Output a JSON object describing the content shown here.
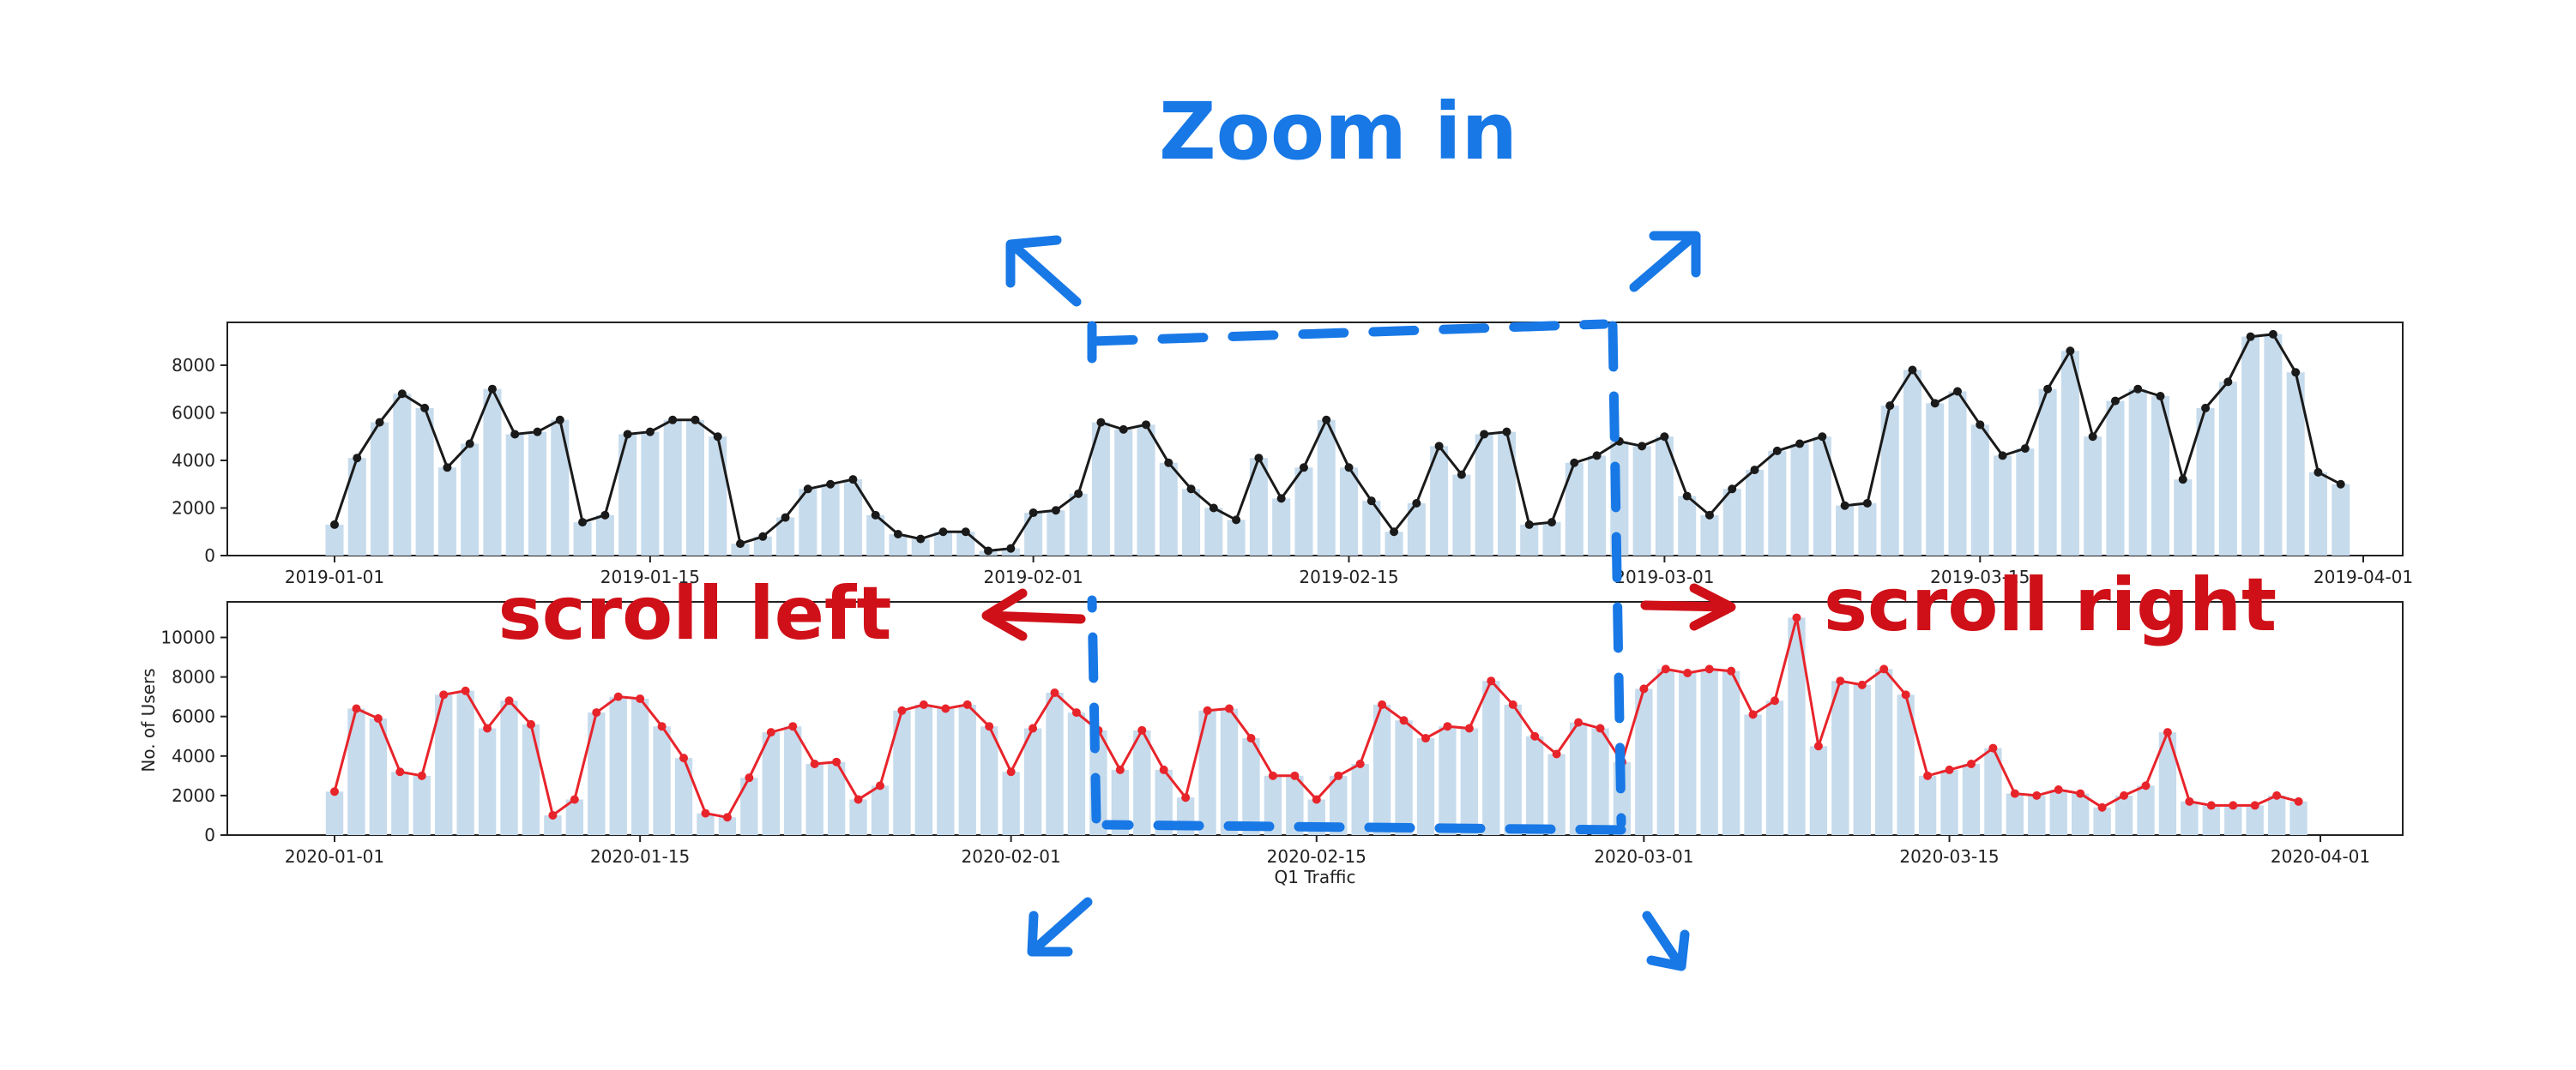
{
  "annotations": {
    "zoom": "Zoom in",
    "scroll_left": "scroll left",
    "scroll_right": "scroll right"
  },
  "colors": {
    "bar": "#c6dbec",
    "line_top": "#1a1a1a",
    "line_bottom": "#e8242b",
    "annotation_blue": "#1878e6",
    "annotation_red": "#cf1018"
  },
  "chart_data": [
    {
      "type": "bar+line",
      "title": "",
      "xlabel": "",
      "ylabel": "",
      "ylim": [
        0,
        9800
      ],
      "yticks": [
        0,
        2000,
        4000,
        6000,
        8000
      ],
      "x_start": "2019-01-01",
      "x_end": "2019-03-31",
      "xticks": [
        "2019-01-01",
        "2019-01-15",
        "2019-02-01",
        "2019-02-15",
        "2019-03-01",
        "2019-03-15",
        "2019-04-01"
      ],
      "values": [
        1300,
        4100,
        5600,
        6800,
        6200,
        3700,
        4700,
        7000,
        5100,
        5200,
        5700,
        1400,
        1700,
        5100,
        5200,
        5700,
        5700,
        5000,
        500,
        800,
        1600,
        2800,
        3000,
        3200,
        1700,
        900,
        700,
        1000,
        1000,
        200,
        300,
        1800,
        1900,
        2600,
        5600,
        5300,
        5500,
        3900,
        2800,
        2000,
        1500,
        4100,
        2400,
        3700,
        5700,
        3700,
        2300,
        1000,
        2200,
        4600,
        3400,
        5100,
        5200,
        1300,
        1400,
        3900,
        4200,
        4800,
        4600,
        5000,
        2500,
        1700,
        2800,
        3600,
        4400,
        4700,
        5000,
        2100,
        2200,
        6300,
        7800,
        6400,
        6900,
        5500,
        4200,
        4500,
        7000,
        8600,
        5000,
        6500,
        7000,
        6700,
        3200,
        6200,
        7300,
        9200,
        9300,
        7700,
        3500,
        3000
      ]
    },
    {
      "type": "bar+line",
      "title": "",
      "xlabel": "Q1 Traffic",
      "ylabel": "No. of Users",
      "ylim": [
        0,
        11800
      ],
      "yticks": [
        0,
        2000,
        4000,
        6000,
        8000,
        10000
      ],
      "x_start": "2020-01-01",
      "x_end": "2020-03-31",
      "xticks": [
        "2020-01-01",
        "2020-01-15",
        "2020-02-01",
        "2020-02-15",
        "2020-03-01",
        "2020-03-15",
        "2020-04-01"
      ],
      "values": [
        2200,
        6400,
        5900,
        3200,
        3000,
        7100,
        7300,
        5400,
        6800,
        5600,
        1000,
        1800,
        6200,
        7000,
        6900,
        5500,
        3900,
        1100,
        900,
        2900,
        5200,
        5500,
        3600,
        3700,
        1800,
        2500,
        6300,
        6600,
        6400,
        6600,
        5500,
        3200,
        5400,
        7200,
        6200,
        5300,
        3300,
        5300,
        3300,
        1900,
        6300,
        6400,
        4900,
        3000,
        3000,
        1800,
        3000,
        3600,
        6600,
        5800,
        4900,
        5500,
        5400,
        7800,
        6600,
        5000,
        4100,
        5700,
        5400,
        3700,
        7400,
        8400,
        8200,
        8400,
        8300,
        6100,
        6800,
        11000,
        4500,
        7800,
        7600,
        8400,
        7100,
        3000,
        3300,
        3600,
        4400,
        2100,
        2000,
        2300,
        2100,
        1400,
        2000,
        2500,
        5200,
        1700,
        1500,
        1500,
        1500,
        2000,
        1700
      ]
    }
  ]
}
